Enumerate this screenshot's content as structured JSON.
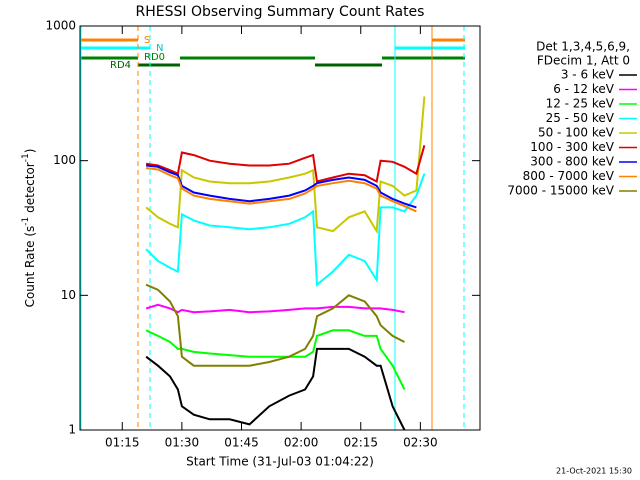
{
  "chart_data": {
    "type": "line",
    "title": "RHESSI Observing Summary Count Rates",
    "x_label": "Start Time (31-Jul-03 01:04:22)",
    "y_label": [
      "Count Rate (s",
      "-1",
      " detector",
      "-1",
      ")"
    ],
    "y_log": true,
    "xlim": [
      64.37,
      165
    ],
    "ylim": [
      1,
      1000
    ],
    "xticks": [
      {
        "value": 75,
        "label": "01:15"
      },
      {
        "value": 90,
        "label": "01:30"
      },
      {
        "value": 105,
        "label": "01:45"
      },
      {
        "value": 120,
        "label": "02:00"
      },
      {
        "value": 135,
        "label": "02:15"
      },
      {
        "value": 150,
        "label": "02:30"
      }
    ],
    "yticks": [
      1,
      10,
      100,
      1000
    ],
    "legend_title": [
      "Det 1,3,4,5,6,9,",
      "FDecim 1, Att 0"
    ],
    "status_labels": [
      "S",
      "N",
      "RD0",
      "RD4"
    ],
    "footer": "21-Oct-2021 15:30",
    "x": [
      81,
      84,
      87,
      89,
      90,
      93,
      97,
      102,
      107,
      112,
      117,
      121,
      123,
      124,
      128,
      132,
      136,
      139,
      140,
      143,
      146,
      149,
      151
    ],
    "series": [
      {
        "name": "3 - 6 keV",
        "color": "#000000",
        "values": [
          3.5,
          3,
          2.5,
          2,
          1.5,
          1.3,
          1.2,
          1.2,
          1.1,
          1.5,
          1.8,
          2,
          2.5,
          4,
          4,
          4,
          3.5,
          3,
          3,
          1.5,
          1,
          null,
          null
        ]
      },
      {
        "name": "6 - 12 keV",
        "color": "#ff00ff",
        "values": [
          8,
          8.5,
          8,
          7.5,
          7.8,
          7.5,
          7.6,
          7.8,
          7.5,
          7.6,
          7.8,
          8,
          8,
          8,
          8.2,
          8.2,
          8,
          8,
          8,
          7.8,
          7.5,
          null,
          null
        ]
      },
      {
        "name": "12 - 25 keV",
        "color": "#00ff00",
        "values": [
          5.5,
          5,
          4.5,
          4,
          4,
          3.8,
          3.7,
          3.6,
          3.5,
          3.5,
          3.5,
          3.5,
          3.8,
          5,
          5.5,
          5.5,
          5,
          5,
          4,
          3,
          2,
          null,
          null
        ]
      },
      {
        "name": "25 - 50 keV",
        "color": "#00ffff",
        "values": [
          22,
          18,
          16,
          15,
          40,
          36,
          33,
          32,
          31,
          32,
          34,
          38,
          42,
          12,
          15,
          20,
          18,
          13,
          45,
          45,
          42,
          55,
          80
        ]
      },
      {
        "name": "50 - 100 keV",
        "color": "#c8c800",
        "values": [
          45,
          38,
          34,
          32,
          85,
          75,
          70,
          68,
          68,
          70,
          75,
          80,
          85,
          32,
          30,
          38,
          42,
          30,
          70,
          65,
          55,
          60,
          300
        ]
      },
      {
        "name": "100 - 300 keV",
        "color": "#e00000",
        "values": [
          95,
          92,
          85,
          80,
          115,
          110,
          100,
          95,
          92,
          92,
          95,
          105,
          110,
          70,
          75,
          80,
          78,
          70,
          100,
          98,
          90,
          80,
          130
        ]
      },
      {
        "name": "300 - 800 keV",
        "color": "#0000ff",
        "values": [
          92,
          90,
          82,
          78,
          65,
          58,
          55,
          52,
          50,
          52,
          55,
          60,
          65,
          68,
          72,
          75,
          72,
          65,
          58,
          52,
          48,
          45,
          null
        ]
      },
      {
        "name": "800 - 7000 keV",
        "color": "#ff8000",
        "values": [
          88,
          86,
          78,
          74,
          62,
          55,
          52,
          50,
          48,
          50,
          52,
          57,
          62,
          65,
          68,
          71,
          68,
          62,
          55,
          50,
          46,
          42,
          null
        ]
      },
      {
        "name": "7000 - 15000 keV",
        "color": "#808000",
        "values": [
          12,
          11,
          9,
          7,
          3.5,
          3,
          3,
          3,
          3,
          3.2,
          3.5,
          4,
          5,
          7,
          8,
          10,
          9,
          7,
          6,
          5,
          4.5,
          null,
          null
        ]
      }
    ]
  }
}
